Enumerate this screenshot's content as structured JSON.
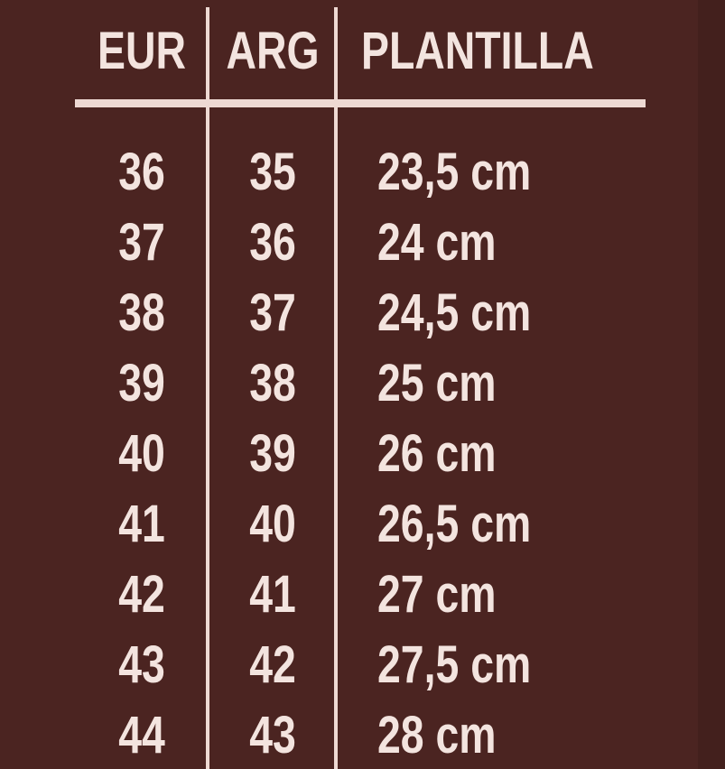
{
  "colors": {
    "background": "#4b2421",
    "text": "#f3e4df"
  },
  "table": {
    "headers": [
      "EUR",
      "ARG",
      "PLANTILLA"
    ],
    "rows": [
      [
        "36",
        "35",
        "23,5 cm"
      ],
      [
        "37",
        "36",
        "24 cm"
      ],
      [
        "38",
        "37",
        "24,5 cm"
      ],
      [
        "39",
        "38",
        "25 cm"
      ],
      [
        "40",
        "39",
        "26 cm"
      ],
      [
        "41",
        "40",
        "26,5 cm"
      ],
      [
        "42",
        "41",
        "27 cm"
      ],
      [
        "43",
        "42",
        "27,5 cm"
      ],
      [
        "44",
        "43",
        "28 cm"
      ]
    ]
  }
}
